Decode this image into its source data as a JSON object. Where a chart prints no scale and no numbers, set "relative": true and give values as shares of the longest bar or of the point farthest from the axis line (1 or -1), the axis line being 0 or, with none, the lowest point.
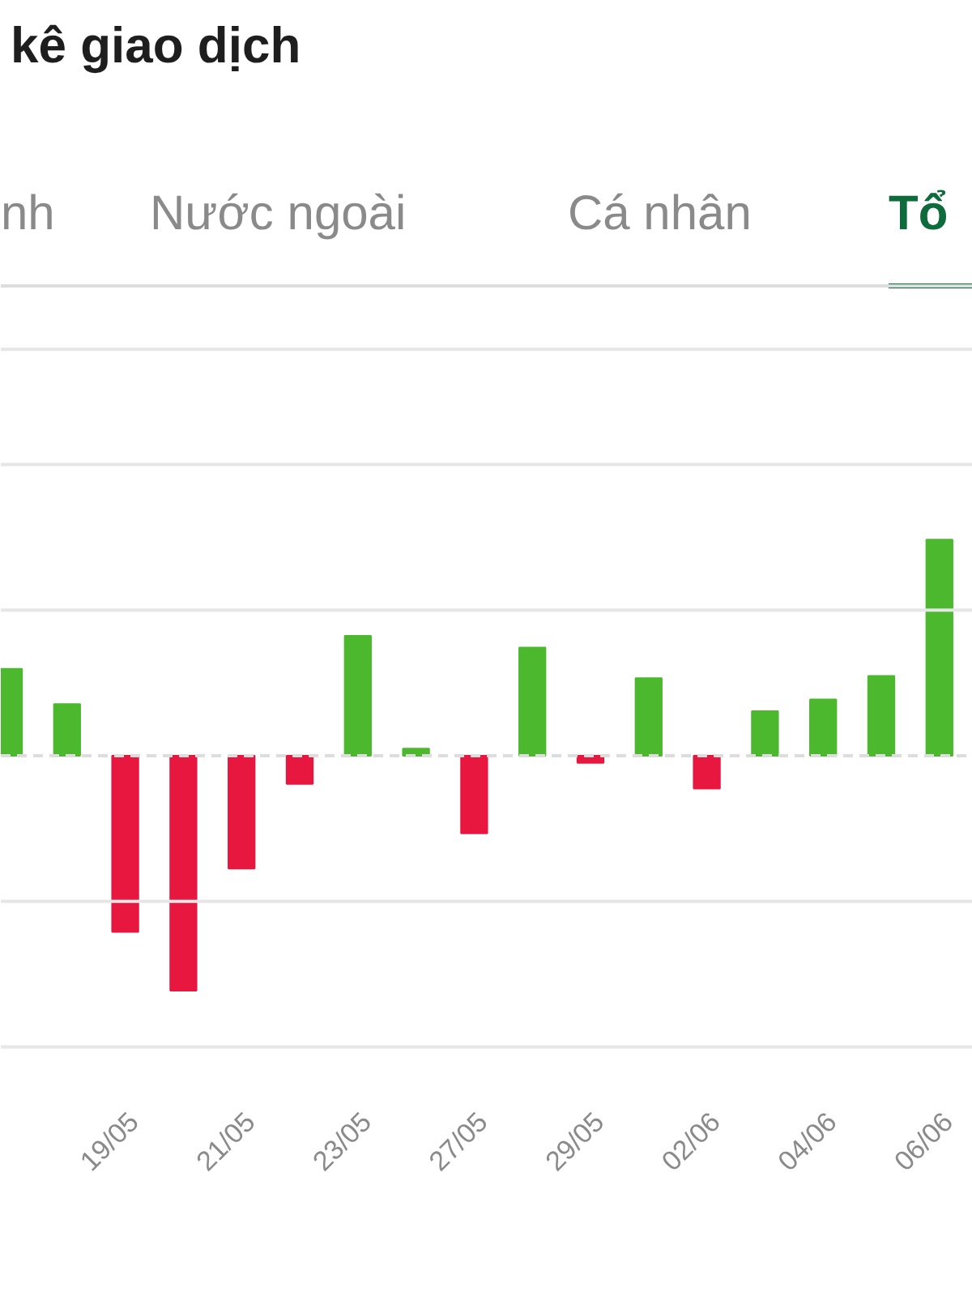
{
  "chart_data": {
    "type": "bar",
    "title": "kê giao dịch",
    "annotations": [
      "nh",
      "Nước ngoài",
      "Cá nhân",
      "Tổ"
    ],
    "relative": true,
    "ref_lines": [
      {
        "axis": "y",
        "value": 0,
        "color": "#dddddd",
        "line_style": "dashed"
      },
      {
        "axis": "y",
        "value": 0.62,
        "color": "#e6e6e6"
      },
      {
        "axis": "y",
        "value": 1.24,
        "color": "#e6e6e6"
      },
      {
        "axis": "y",
        "value": 1.73,
        "color": "#e6e6e6"
      },
      {
        "axis": "y",
        "value": -0.62,
        "color": "#e6e6e6"
      },
      {
        "axis": "y",
        "value": -1.24,
        "color": "#e6e6e6"
      }
    ],
    "categories": [
      null,
      null,
      "19/05",
      null,
      "21/05",
      null,
      "23/05",
      null,
      "27/05",
      null,
      "29/05",
      null,
      "02/06",
      null,
      "04/06",
      null,
      "06/06"
    ],
    "values": [
      0.37,
      0.22,
      -0.75,
      -1,
      -0.48,
      -0.12,
      0.51,
      0.03,
      -0.33,
      0.46,
      -0.03,
      0.33,
      -0.14,
      0.19,
      0.24,
      0.34,
      0.92
    ],
    "colors": [
      "#4cb82e",
      "#4cb82e",
      "#e8173f",
      "#e8173f",
      "#e8173f",
      "#e8173f",
      "#4cb82e",
      "#4cb82e",
      "#e8173f",
      "#4cb82e",
      "#e8173f",
      "#4cb82e",
      "#e8173f",
      "#4cb82e",
      "#4cb82e",
      "#4cb82e",
      "#4cb82e"
    ]
  }
}
